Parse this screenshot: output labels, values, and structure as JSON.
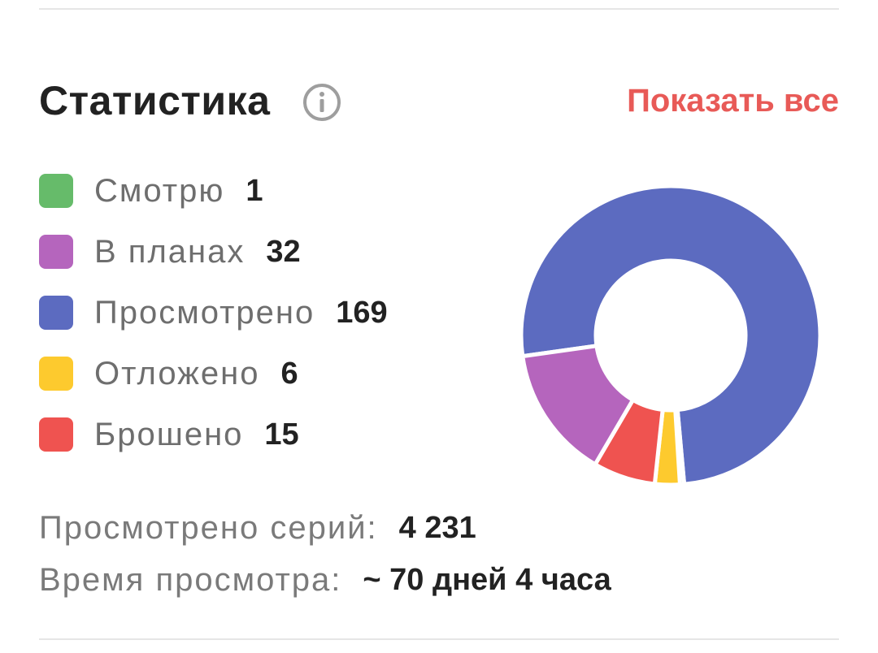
{
  "header": {
    "title": "Статистика",
    "info_icon": "info-icon",
    "show_all_label": "Показать все"
  },
  "legend": [
    {
      "label": "Смотрю",
      "count": "1",
      "color": "#66bb6a"
    },
    {
      "label": "В планах",
      "count": "32",
      "color": "#b565bd"
    },
    {
      "label": "Просмотрено",
      "count": "169",
      "color": "#5c6bc0"
    },
    {
      "label": "Отложено",
      "count": "6",
      "color": "#fdca2e"
    },
    {
      "label": "Брошено",
      "count": "15",
      "color": "#ef5350"
    }
  ],
  "summary": {
    "episodes_label": "Просмотрено серий:",
    "episodes_value": "4 231",
    "time_label": "Время просмотра:",
    "time_value": "~ 70 дней 4 часа"
  },
  "colors": {
    "accent": "#e85a57",
    "title": "#222222",
    "muted_text": "#6e6e6e"
  },
  "chart_data": {
    "type": "pie",
    "variant": "donut",
    "categories": [
      "Смотрю",
      "В планах",
      "Просмотрено",
      "Отложено",
      "Брошено"
    ],
    "values": [
      1,
      32,
      169,
      6,
      15
    ],
    "colors": [
      "#66bb6a",
      "#b565bd",
      "#5c6bc0",
      "#fdca2e",
      "#ef5350"
    ]
  }
}
